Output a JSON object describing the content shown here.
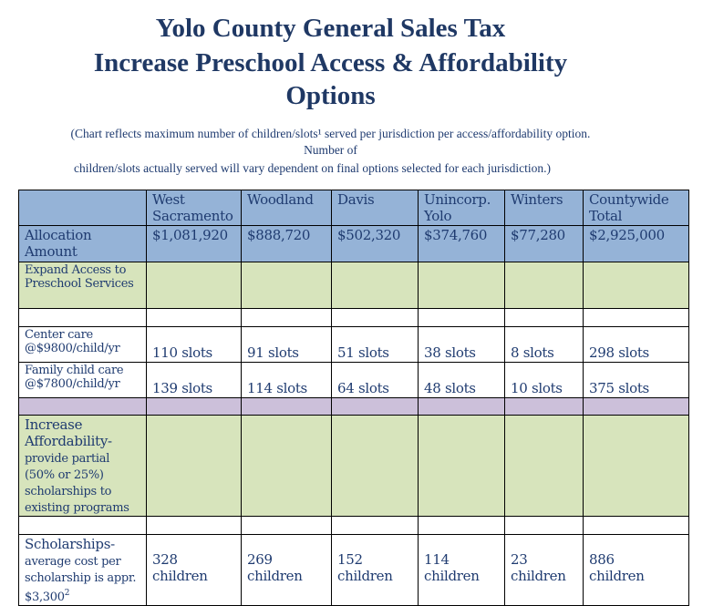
{
  "title": {
    "line1": "Yolo County General Sales Tax",
    "line2": "Increase Preschool Access & Affordability",
    "line3": "Options"
  },
  "subtitle": {
    "line1": "(Chart reflects maximum number of children/slots¹ served per jurisdiction per access/affordability option.",
    "line2": "Number of",
    "line3": "children/slots actually served will vary dependent on final options selected for each jurisdiction.)"
  },
  "table": {
    "headers": [
      "West Sacramento",
      "Woodland",
      "Davis",
      "Unincorp. Yolo",
      "Winters",
      "Countywide Total"
    ],
    "allocation": {
      "label": "Allocation Amount",
      "values": [
        "$1,081,920",
        "$888,720",
        "$502,320",
        "$374,760",
        "$77,280",
        "$2,925,000"
      ]
    },
    "expand": {
      "label": "Expand Access to Preschool Services"
    },
    "center": {
      "label1": "Center care",
      "label2": "@$9800/child/yr",
      "values": [
        "110 slots",
        "91 slots",
        "51 slots",
        "38 slots",
        "8 slots",
        "298 slots"
      ]
    },
    "family": {
      "label1": "Family child care",
      "label2": "@$7800/child/yr",
      "values": [
        "139 slots",
        "114 slots",
        "64 slots",
        "48 slots",
        "10 slots",
        "375 slots"
      ]
    },
    "afford": {
      "label1": "Increase Affordability-",
      "label2": "provide partial (50% or 25%) scholarships to existing programs"
    },
    "scholar": {
      "label1": "Scholarships-",
      "label2": "average cost per scholarship is appr.",
      "label3": "$3,300",
      "sup": "2",
      "values": [
        "328",
        "269",
        "152",
        "114",
        "23",
        "886"
      ],
      "unit": "children"
    }
  },
  "colors": {
    "header": "#95b3d7",
    "green": "#d7e4bc",
    "purple": "#ccc0da",
    "title": "#1f3864"
  }
}
